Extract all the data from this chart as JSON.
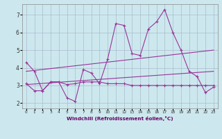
{
  "xlabel": "Windchill (Refroidissement éolien,°C)",
  "background_color": "#cce8ee",
  "grid_color": "#aabbcc",
  "line_color": "#993399",
  "x_ticks": [
    0,
    1,
    2,
    3,
    4,
    5,
    6,
    7,
    8,
    9,
    10,
    11,
    12,
    13,
    14,
    15,
    16,
    17,
    18,
    19,
    20,
    21,
    22,
    23
  ],
  "ylim": [
    1.7,
    7.6
  ],
  "xlim": [
    -0.5,
    23.5
  ],
  "yticks": [
    2,
    3,
    4,
    5,
    6,
    7
  ],
  "series1": [
    4.3,
    3.8,
    2.7,
    3.2,
    3.2,
    2.3,
    2.1,
    3.9,
    3.7,
    3.1,
    4.5,
    6.5,
    6.4,
    4.8,
    4.7,
    6.2,
    6.6,
    7.3,
    6.0,
    5.0,
    3.8,
    3.5,
    2.6,
    2.9
  ],
  "series2": [
    3.1,
    2.7,
    2.7,
    3.2,
    3.2,
    3.05,
    3.1,
    3.2,
    3.2,
    3.2,
    3.1,
    3.1,
    3.1,
    3.0,
    3.0,
    3.0,
    3.0,
    3.0,
    3.0,
    3.0,
    3.0,
    3.0,
    3.0,
    3.0
  ],
  "trend1_x": [
    0,
    23
  ],
  "trend1_y": [
    3.8,
    5.0
  ],
  "trend2_x": [
    0,
    23
  ],
  "trend2_y": [
    3.05,
    3.8
  ]
}
